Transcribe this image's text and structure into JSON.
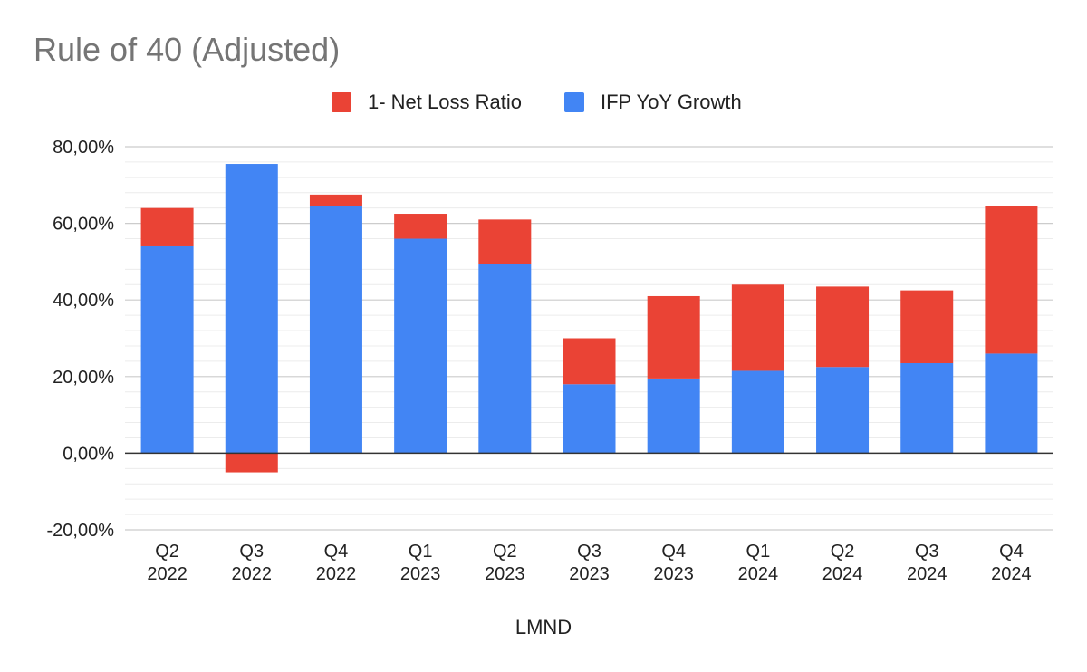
{
  "chart_data": {
    "type": "bar",
    "stacked": true,
    "title": "Rule of 40 (Adjusted)",
    "xlabel": "LMND",
    "ylabel": "",
    "ylim": [
      -20,
      80
    ],
    "yticks": [
      "80,00%",
      "60,00%",
      "40,00%",
      "20,00%",
      "0,00%",
      "-20,00%"
    ],
    "ytick_values": [
      80,
      60,
      40,
      20,
      0,
      -20
    ],
    "grid": true,
    "minor_grid": true,
    "legend_position": "top",
    "categories": [
      [
        "Q2",
        "2022"
      ],
      [
        "Q3",
        "2022"
      ],
      [
        "Q4",
        "2022"
      ],
      [
        "Q1",
        "2023"
      ],
      [
        "Q2",
        "2023"
      ],
      [
        "Q3",
        "2023"
      ],
      [
        "Q4",
        "2023"
      ],
      [
        "Q1",
        "2024"
      ],
      [
        "Q2",
        "2024"
      ],
      [
        "Q3",
        "2024"
      ],
      [
        "Q4",
        "2024"
      ]
    ],
    "series": [
      {
        "name": "1- Net Loss Ratio",
        "color": "#ea4335",
        "values": [
          10,
          -5,
          3,
          6.5,
          11.5,
          12,
          21.5,
          22.5,
          21,
          19,
          38.5
        ]
      },
      {
        "name": "IFP YoY Growth",
        "color": "#4285f4",
        "values": [
          54,
          75.5,
          64.5,
          56,
          49.5,
          18,
          19.5,
          21.5,
          22.5,
          23.5,
          26
        ]
      }
    ],
    "legend_order": [
      0,
      1
    ]
  }
}
